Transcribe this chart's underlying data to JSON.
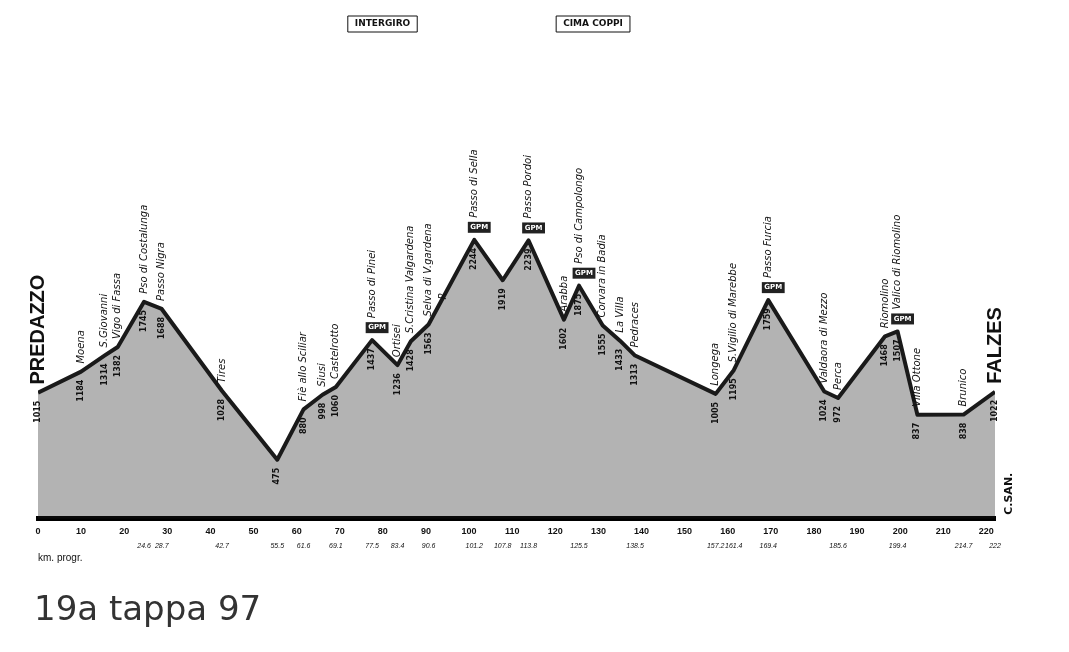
{
  "chart_data": {
    "type": "area",
    "title": "19a tappa 97",
    "color": "#1a1a1a",
    "x": [
      0,
      10,
      15.5,
      18.5,
      24.6,
      28.7,
      42.7,
      55.5,
      61.6,
      66,
      69.1,
      77.5,
      83.4,
      86.5,
      90.6,
      101.2,
      107.8,
      113.8,
      122,
      125.5,
      131,
      135,
      138.5,
      157.2,
      161.4,
      169.4,
      182.4,
      185.6,
      196.5,
      199.4,
      204,
      214.7,
      222
    ],
    "values": [
      1015,
      1184,
      1314,
      1382,
      1745,
      1688,
      1028,
      475,
      880,
      998,
      1060,
      1437,
      1236,
      1428,
      1563,
      2244,
      1919,
      2239,
      1602,
      1875,
      1555,
      1433,
      1313,
      1005,
      1195,
      1759,
      1024,
      972,
      1468,
      1507,
      837,
      838,
      1022
    ],
    "data_labels": true,
    "xlim": [
      0,
      222
    ],
    "xticks": [
      0,
      10,
      20,
      30,
      40,
      50,
      60,
      70,
      80,
      90,
      100,
      110,
      120,
      130,
      140,
      150,
      160,
      170,
      180,
      190,
      200,
      210,
      220
    ],
    "x2label": "km. progr.",
    "x2lim": [
      0,
      222
    ],
    "x2ticks": [
      24.6,
      28.7,
      42.7,
      55.5,
      61.6,
      69.1,
      77.5,
      83.4,
      90.6,
      101.2,
      107.8,
      113.8,
      125.5,
      138.5,
      157.2,
      161.4,
      169.4,
      185.6,
      199.4,
      214.7,
      222.0
    ],
    "annotations": [
      {
        "text": "PREDAZZO",
        "x": 0,
        "y": 1015
      },
      {
        "text": "Moena",
        "x": 10,
        "y": 1184
      },
      {
        "text": "S.Giovanni",
        "x": 15.5,
        "y": 1314
      },
      {
        "text": "Vigo di Fassa",
        "x": 18.5,
        "y": 1382
      },
      {
        "text": "Pso di Costalunga",
        "x": 24.6,
        "y": 1745
      },
      {
        "text": "Passo Nigra",
        "x": 28.7,
        "y": 1688
      },
      {
        "text": "Tires",
        "x": 42.7,
        "y": 1028
      },
      {
        "text": "Fiè allo Sciliar",
        "x": 61.6,
        "y": 880
      },
      {
        "text": "Siusi",
        "x": 66,
        "y": 998
      },
      {
        "text": "Castelrotto",
        "x": 69.1,
        "y": 1060
      },
      {
        "text": "Passo di Pinei",
        "x": 77.5,
        "y": 1437
      },
      {
        "text": "Ortisei",
        "x": 83.4,
        "y": 1236
      },
      {
        "text": "S.Cristina Valgardena",
        "x": 86.5,
        "y": 1428
      },
      {
        "text": "Selva di V.gardena",
        "x": 90.6,
        "y": 1563
      },
      {
        "text": "R",
        "x": 94,
        "y": 1700
      },
      {
        "text": "Passo di Sella",
        "x": 101.2,
        "y": 2244
      },
      {
        "text": "Passo Pordoi",
        "x": 113.8,
        "y": 2239
      },
      {
        "text": "Arabba",
        "x": 122,
        "y": 1602
      },
      {
        "text": "Pso di Campolongo",
        "x": 125.5,
        "y": 1875
      },
      {
        "text": "Corvara in Badia",
        "x": 131,
        "y": 1555
      },
      {
        "text": "La Villa",
        "x": 135,
        "y": 1433
      },
      {
        "text": "Pedraces",
        "x": 138.5,
        "y": 1313
      },
      {
        "text": "Longega",
        "x": 157.2,
        "y": 1005
      },
      {
        "text": "S.Vigilio di Marebbe",
        "x": 161.4,
        "y": 1195
      },
      {
        "text": "Passo Furcia",
        "x": 169.4,
        "y": 1759
      },
      {
        "text": "Valdaora di Mezzo",
        "x": 182.4,
        "y": 1024
      },
      {
        "text": "Perca",
        "x": 185.6,
        "y": 972
      },
      {
        "text": "Riomolino",
        "x": 196.5,
        "y": 1468
      },
      {
        "text": "Valico di Riomolino",
        "x": 199.4,
        "y": 1507
      },
      {
        "text": "Villa Ottone",
        "x": 204,
        "y": 837
      },
      {
        "text": "Brunico",
        "x": 214.7,
        "y": 838
      },
      {
        "text": "FALZES",
        "x": 222,
        "y": 1022
      },
      {
        "text": "GPM",
        "x": 77.5,
        "y": 1437
      },
      {
        "text": "GPM",
        "x": 101.2,
        "y": 2244
      },
      {
        "text": "GPM",
        "x": 113.8,
        "y": 2239
      },
      {
        "text": "GPM",
        "x": 125.5,
        "y": 1875
      },
      {
        "text": "GPM",
        "x": 169.4,
        "y": 1759
      },
      {
        "text": "GPM",
        "x": 199.4,
        "y": 1507
      },
      "INTERGIRO",
      "CIMA COPPI",
      "C.SAN."
    ]
  }
}
